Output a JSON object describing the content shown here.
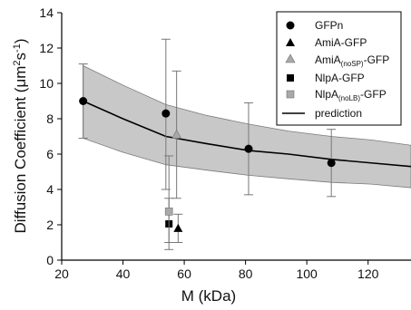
{
  "chart_data": {
    "type": "scatter",
    "xlabel": "M (kDa)",
    "ylabel": "Diffusion Coefficient (µm²s⁻¹)",
    "ylabel_parts": {
      "main": "Diffusion Coefficient (μm",
      "sup1": "2",
      "mid": "s",
      "sup2": "-1",
      "end": ")"
    },
    "xlim": [
      20,
      134
    ],
    "ylim": [
      0,
      14
    ],
    "xticks": [
      20,
      40,
      60,
      80,
      100,
      120
    ],
    "yticks": [
      0,
      2,
      4,
      6,
      8,
      10,
      12,
      14
    ],
    "grid": false,
    "legend_position": "top-right",
    "series": [
      {
        "name": "GFPn",
        "marker": "circle",
        "color": "#000000",
        "points": [
          {
            "x": 27,
            "y": 9.0,
            "err_low": 6.9,
            "err_high": 11.1
          },
          {
            "x": 54,
            "y": 8.3,
            "err_low": 4.0,
            "err_high": 12.5
          },
          {
            "x": 81,
            "y": 6.3,
            "err_low": 3.7,
            "err_high": 8.9
          },
          {
            "x": 108,
            "y": 5.5,
            "err_low": 3.6,
            "err_high": 7.4
          }
        ]
      },
      {
        "name": "AmiA-GFP",
        "marker": "triangle",
        "color": "#000000",
        "points": [
          {
            "x": 58,
            "y": 1.8,
            "err_low": 1.0,
            "err_high": 2.6
          }
        ]
      },
      {
        "name": "AmiA(noSP)-GFP",
        "name_parts": {
          "main": "AmiA",
          "sub": "(noSP)",
          "end": "-GFP"
        },
        "marker": "triangle",
        "color": "#a9a9a9",
        "points": [
          {
            "x": 57.5,
            "y": 7.1,
            "err_low": 3.5,
            "err_high": 10.7
          }
        ]
      },
      {
        "name": "NlpA-GFP",
        "marker": "square",
        "color": "#000000",
        "points": [
          {
            "x": 55,
            "y": 2.05,
            "err_low": 1.0,
            "err_high": 3.5
          }
        ]
      },
      {
        "name": "NlpA(noLB)-GFP",
        "name_parts": {
          "main": "NlpA",
          "sub": "(noLB)",
          "end": "-GFP"
        },
        "marker": "square",
        "color": "#a9a9a9",
        "points": [
          {
            "x": 55,
            "y": 2.75,
            "err_low": 0.6,
            "err_high": 5.9
          }
        ]
      },
      {
        "name": "prediction",
        "marker": "line",
        "color": "#000000",
        "band_color": "#c8c8c8",
        "points": [
          {
            "x": 27,
            "y": 9.0,
            "low": 6.9,
            "high": 11.0
          },
          {
            "x": 40,
            "y": 8.0,
            "low": 6.1,
            "high": 9.9
          },
          {
            "x": 54,
            "y": 7.0,
            "low": 5.4,
            "high": 8.8
          },
          {
            "x": 67,
            "y": 6.6,
            "low": 5.1,
            "high": 8.2
          },
          {
            "x": 81,
            "y": 6.2,
            "low": 4.8,
            "high": 7.7
          },
          {
            "x": 94,
            "y": 6.0,
            "low": 4.6,
            "high": 7.3
          },
          {
            "x": 108,
            "y": 5.7,
            "low": 4.4,
            "high": 7.0
          },
          {
            "x": 121,
            "y": 5.5,
            "low": 4.3,
            "high": 6.8
          },
          {
            "x": 134,
            "y": 5.3,
            "low": 4.1,
            "high": 6.5
          }
        ]
      }
    ]
  }
}
